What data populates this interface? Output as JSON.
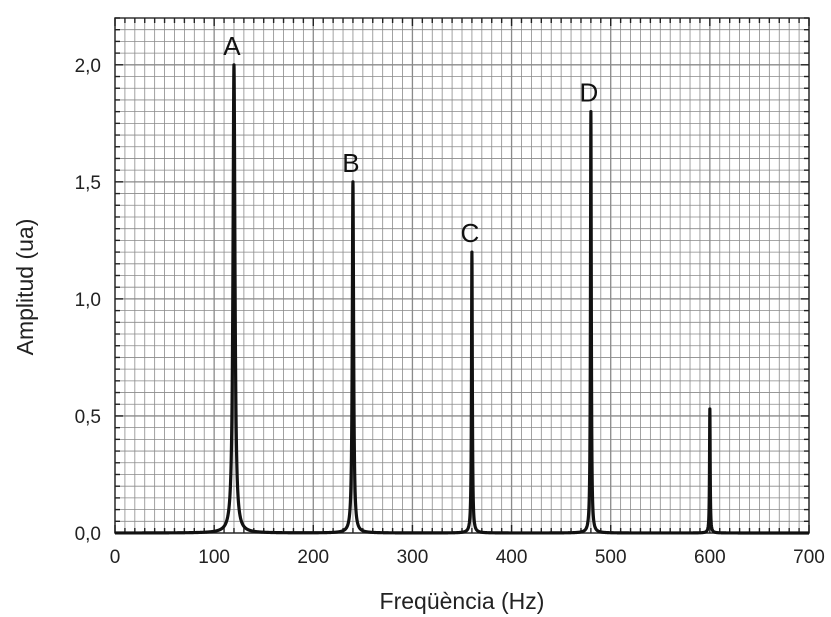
{
  "chart_data": {
    "type": "line",
    "title": "",
    "xlabel": "Freqüència (Hz)",
    "ylabel": "Amplitud (ua)",
    "xlim": [
      0,
      700
    ],
    "ylim": [
      0,
      2.2
    ],
    "x_ticks": [
      0,
      100,
      200,
      300,
      400,
      500,
      600,
      700
    ],
    "x_tick_labels": [
      "0",
      "100",
      "200",
      "300",
      "400",
      "500",
      "600",
      "700"
    ],
    "y_ticks": [
      0,
      0.5,
      1.0,
      1.5,
      2.0
    ],
    "y_tick_labels": [
      "0,0",
      "0,5",
      "1,0",
      "1,5",
      "2,0"
    ],
    "grid": true,
    "series": [
      {
        "peaks": [
          {
            "x": 120,
            "y": 2.0,
            "label": "A"
          },
          {
            "x": 240,
            "y": 1.5,
            "label": "B"
          },
          {
            "x": 360,
            "y": 1.2,
            "label": "C"
          },
          {
            "x": 480,
            "y": 1.8,
            "label": "D"
          },
          {
            "x": 600,
            "y": 0.53,
            "label": ""
          }
        ]
      }
    ],
    "colors": {
      "line": "#111111",
      "grid": "#8a8a8a",
      "frame": "#333333"
    }
  }
}
